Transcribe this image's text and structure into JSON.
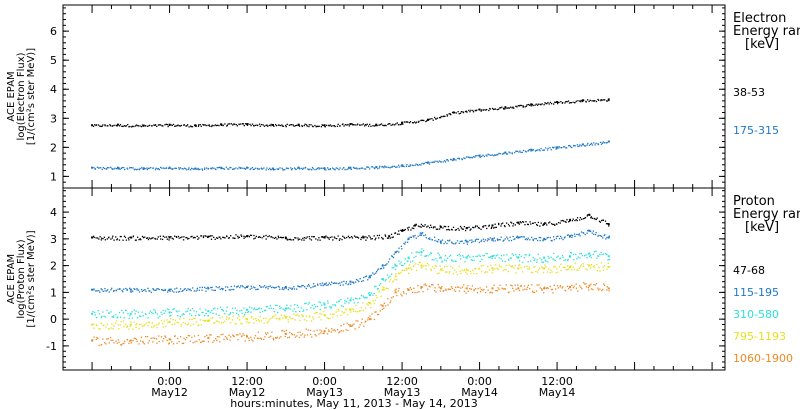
{
  "chart_data": [
    {
      "type": "scatter",
      "panel": "electron",
      "ylabel_lines": [
        "ACE EPAM",
        "log(Electron Flux)",
        "[1/(cm²s ster MeV)]"
      ],
      "ylim": [
        0.6,
        6.9
      ],
      "yticks": [
        1,
        2,
        3,
        4,
        5,
        6
      ],
      "legend_title_lines": [
        "Electron",
        "Energy ran",
        "[keV]"
      ],
      "legend_placement": "right",
      "series": [
        {
          "name": "38-53",
          "color": "#000000",
          "points": [
            [
              -12,
              2.76
            ],
            [
              -8,
              2.78
            ],
            [
              -4,
              2.75
            ],
            [
              0,
              2.78
            ],
            [
              4,
              2.76
            ],
            [
              8,
              2.79
            ],
            [
              12,
              2.8
            ],
            [
              16,
              2.77
            ],
            [
              20,
              2.78
            ],
            [
              24,
              2.76
            ],
            [
              28,
              2.8
            ],
            [
              32,
              2.78
            ],
            [
              36,
              2.85
            ],
            [
              40,
              2.95
            ],
            [
              44,
              3.2
            ],
            [
              48,
              3.3
            ],
            [
              52,
              3.38
            ],
            [
              56,
              3.48
            ],
            [
              60,
              3.56
            ],
            [
              64,
              3.62
            ],
            [
              68,
              3.65
            ]
          ]
        },
        {
          "name": "175-315",
          "color": "#1f78c8",
          "points": [
            [
              -12,
              1.3
            ],
            [
              -8,
              1.3
            ],
            [
              -4,
              1.28
            ],
            [
              0,
              1.3
            ],
            [
              4,
              1.27
            ],
            [
              8,
              1.3
            ],
            [
              12,
              1.3
            ],
            [
              16,
              1.27
            ],
            [
              20,
              1.3
            ],
            [
              24,
              1.28
            ],
            [
              28,
              1.3
            ],
            [
              32,
              1.32
            ],
            [
              36,
              1.38
            ],
            [
              40,
              1.48
            ],
            [
              44,
              1.6
            ],
            [
              48,
              1.72
            ],
            [
              52,
              1.82
            ],
            [
              56,
              1.92
            ],
            [
              60,
              2.0
            ],
            [
              64,
              2.1
            ],
            [
              68,
              2.2
            ]
          ]
        }
      ]
    },
    {
      "type": "scatter",
      "panel": "proton",
      "ylabel_lines": [
        "ACE EPAM",
        "log(Proton Flux)",
        "[1/(cm²s ster MeV)]"
      ],
      "ylim": [
        -1.9,
        4.9
      ],
      "yticks": [
        -1,
        0,
        1,
        2,
        3,
        4
      ],
      "legend_title_lines": [
        "Proton",
        "Energy ran",
        "[keV]"
      ],
      "legend_placement": "right",
      "series": [
        {
          "name": "47-68",
          "color": "#000000",
          "points": [
            [
              -12,
              3.05
            ],
            [
              -6,
              3.05
            ],
            [
              0,
              3.05
            ],
            [
              6,
              3.08
            ],
            [
              12,
              3.1
            ],
            [
              18,
              3.05
            ],
            [
              24,
              3.05
            ],
            [
              30,
              3.05
            ],
            [
              34,
              3.1
            ],
            [
              36,
              3.3
            ],
            [
              38,
              3.5
            ],
            [
              42,
              3.45
            ],
            [
              46,
              3.4
            ],
            [
              50,
              3.5
            ],
            [
              54,
              3.6
            ],
            [
              58,
              3.55
            ],
            [
              62,
              3.7
            ],
            [
              65,
              3.9
            ],
            [
              68,
              3.55
            ]
          ]
        },
        {
          "name": "115-195",
          "color": "#1f78c8",
          "points": [
            [
              -12,
              1.1
            ],
            [
              -6,
              1.1
            ],
            [
              0,
              1.1
            ],
            [
              6,
              1.15
            ],
            [
              12,
              1.2
            ],
            [
              18,
              1.2
            ],
            [
              24,
              1.3
            ],
            [
              28,
              1.4
            ],
            [
              31,
              1.6
            ],
            [
              33,
              2.0
            ],
            [
              35,
              2.5
            ],
            [
              37,
              3.0
            ],
            [
              39,
              3.2
            ],
            [
              42,
              2.9
            ],
            [
              46,
              2.9
            ],
            [
              50,
              3.0
            ],
            [
              54,
              3.05
            ],
            [
              58,
              3.0
            ],
            [
              62,
              3.1
            ],
            [
              65,
              3.3
            ],
            [
              68,
              3.05
            ]
          ]
        },
        {
          "name": "310-580",
          "color": "#2ee0d8",
          "points": [
            [
              -12,
              0.2
            ],
            [
              -6,
              0.2
            ],
            [
              0,
              0.25
            ],
            [
              6,
              0.3
            ],
            [
              12,
              0.35
            ],
            [
              18,
              0.4
            ],
            [
              24,
              0.55
            ],
            [
              28,
              0.7
            ],
            [
              31,
              0.9
            ],
            [
              33,
              1.5
            ],
            [
              35,
              2.0
            ],
            [
              37,
              2.3
            ],
            [
              39,
              2.5
            ],
            [
              42,
              2.3
            ],
            [
              46,
              2.3
            ],
            [
              50,
              2.35
            ],
            [
              54,
              2.3
            ],
            [
              58,
              2.3
            ],
            [
              62,
              2.35
            ],
            [
              65,
              2.45
            ],
            [
              68,
              2.35
            ]
          ]
        },
        {
          "name": "795-1193",
          "color": "#e8e020",
          "points": [
            [
              -12,
              -0.2
            ],
            [
              -6,
              -0.2
            ],
            [
              0,
              -0.1
            ],
            [
              6,
              -0.05
            ],
            [
              12,
              0.0
            ],
            [
              18,
              0.05
            ],
            [
              24,
              0.15
            ],
            [
              28,
              0.35
            ],
            [
              31,
              0.6
            ],
            [
              33,
              1.1
            ],
            [
              35,
              1.6
            ],
            [
              37,
              1.9
            ],
            [
              39,
              2.0
            ],
            [
              42,
              1.85
            ],
            [
              46,
              1.85
            ],
            [
              50,
              1.9
            ],
            [
              54,
              1.9
            ],
            [
              58,
              1.9
            ],
            [
              62,
              1.95
            ],
            [
              65,
              2.0
            ],
            [
              68,
              1.95
            ]
          ]
        },
        {
          "name": "1060-1900",
          "color": "#f08a24",
          "points": [
            [
              -12,
              -0.8
            ],
            [
              -6,
              -0.8
            ],
            [
              0,
              -0.75
            ],
            [
              6,
              -0.7
            ],
            [
              12,
              -0.65
            ],
            [
              18,
              -0.55
            ],
            [
              24,
              -0.45
            ],
            [
              28,
              -0.25
            ],
            [
              31,
              0.0
            ],
            [
              33,
              0.5
            ],
            [
              35,
              1.0
            ],
            [
              37,
              1.1
            ],
            [
              39,
              1.2
            ],
            [
              42,
              1.15
            ],
            [
              46,
              1.15
            ],
            [
              50,
              1.15
            ],
            [
              54,
              1.15
            ],
            [
              58,
              1.15
            ],
            [
              62,
              1.2
            ],
            [
              65,
              1.25
            ],
            [
              68,
              1.15
            ]
          ]
        }
      ]
    }
  ],
  "x_axis": {
    "unit": "hours since May 12 0:00",
    "xlim": [
      -16.5,
      86
    ],
    "ticks": [
      {
        "x": 0,
        "label": [
          "0:00",
          "May12"
        ]
      },
      {
        "x": 12,
        "label": [
          "12:00",
          "May12"
        ]
      },
      {
        "x": 24,
        "label": [
          "0:00",
          "May13"
        ]
      },
      {
        "x": 36,
        "label": [
          "12:00",
          "May13"
        ]
      },
      {
        "x": 48,
        "label": [
          "0:00",
          "May14"
        ]
      },
      {
        "x": 60,
        "label": [
          "12:00",
          "May14"
        ]
      }
    ],
    "title": "hours:minutes, May 11, 2013 - May 14, 2013"
  }
}
